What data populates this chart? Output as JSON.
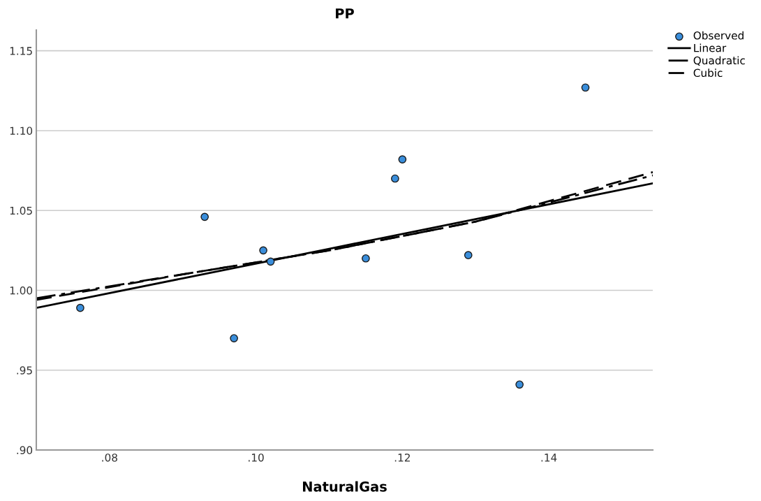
{
  "chart_data": {
    "type": "scatter",
    "title": "PP",
    "xlabel": "NaturalGas",
    "xlim": [
      0.07,
      0.1542
    ],
    "ylim": [
      0.9,
      1.163
    ],
    "xticks": [
      {
        "value": 0.08,
        "label": ".08"
      },
      {
        "value": 0.1,
        "label": ".10"
      },
      {
        "value": 0.12,
        "label": ".12"
      },
      {
        "value": 0.14,
        "label": ".14"
      }
    ],
    "yticks": [
      {
        "value": 0.9,
        "label": ".90"
      },
      {
        "value": 0.95,
        "label": ".95"
      },
      {
        "value": 1.0,
        "label": "1.00"
      },
      {
        "value": 1.05,
        "label": "1.05"
      },
      {
        "value": 1.1,
        "label": "1.10"
      },
      {
        "value": 1.15,
        "label": "1.15"
      }
    ],
    "grid": "y",
    "legend": "top right",
    "series": [
      {
        "name": "Observed",
        "marker": "circle",
        "color": "#3a8edb",
        "x": [
          0.076,
          0.093,
          0.097,
          0.101,
          0.102,
          0.115,
          0.119,
          0.12,
          0.129,
          0.136,
          0.145
        ],
        "values": [
          0.989,
          1.046,
          0.97,
          1.025,
          1.018,
          1.02,
          1.07,
          1.082,
          1.022,
          0.941,
          1.127
        ]
      },
      {
        "name": "Linear",
        "type": "line",
        "line_style": "solid",
        "color": "#000000",
        "x": [
          0.07,
          0.09,
          0.11,
          0.13,
          0.1542
        ],
        "values": [
          0.989,
          1.0075,
          1.026,
          1.0446,
          1.067
        ]
      },
      {
        "name": "Quadratic",
        "type": "line",
        "line_style": "dashdot",
        "color": "#000000",
        "x": [
          0.07,
          0.09,
          0.11,
          0.13,
          0.1542
        ],
        "values": [
          0.995,
          1.01,
          1.025,
          1.043,
          1.072
        ]
      },
      {
        "name": "Cubic",
        "type": "line",
        "line_style": "dashed",
        "color": "#000000",
        "x": [
          0.07,
          0.09,
          0.11,
          0.13,
          0.1542
        ],
        "values": [
          0.994,
          1.01,
          1.025,
          1.043,
          1.074
        ]
      }
    ]
  }
}
